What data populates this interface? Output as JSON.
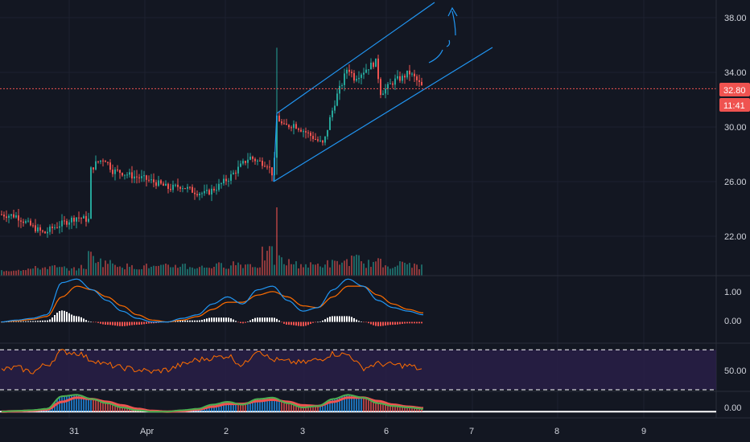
{
  "colors": {
    "background": "#131722",
    "grid": "#1e2230",
    "separator": "#2a2e39",
    "up": "#26a69a",
    "down": "#ef5350",
    "channel": "#2196f3",
    "price_line": "#ef5350",
    "macd_line": "#2196f3",
    "signal_line": "#ff6d00",
    "rsi_line": "#ff6d00",
    "rsi_band": "#2a1f4a",
    "hist_up": "#ffffff",
    "hist_down": "#ef5350",
    "zero_line": "#ffffff",
    "axis_text": "#d1d4dc"
  },
  "x_axis": {
    "labels": [
      "31",
      "Apr",
      "2",
      "3",
      "6",
      "7",
      "8",
      "9"
    ]
  },
  "price_axis": {
    "ticks": [
      "38.00",
      "34.00",
      "30.00",
      "26.00",
      "22.00"
    ]
  },
  "price_badge": {
    "price": "32.80",
    "countdown": "11:41",
    "value": 32.8
  },
  "indicator_axes": {
    "macd_ticks": [
      "1.00",
      "0.00"
    ],
    "rsi_ticks": [
      "50.00"
    ],
    "osc_ticks": [
      "0.00"
    ]
  },
  "chart_data": {
    "type": "candlestick",
    "x": [
      "31",
      "Apr",
      "2",
      "3",
      "6",
      "7",
      "8",
      "9"
    ],
    "ylim": [
      18.5,
      39.0
    ],
    "price_path": [
      [
        0,
        23.6
      ],
      [
        20,
        23.5
      ],
      [
        40,
        22.7
      ],
      [
        55,
        22.2
      ],
      [
        65,
        22.6
      ],
      [
        80,
        23.0
      ],
      [
        95,
        23.4
      ],
      [
        110,
        23.2
      ],
      [
        112,
        26.8
      ],
      [
        120,
        27.4
      ],
      [
        130,
        27.7
      ],
      [
        140,
        26.8
      ],
      [
        150,
        26.7
      ],
      [
        165,
        26.4
      ],
      [
        180,
        26.2
      ],
      [
        195,
        25.9
      ],
      [
        210,
        25.5
      ],
      [
        225,
        25.7
      ],
      [
        240,
        25.3
      ],
      [
        255,
        25.1
      ],
      [
        270,
        25.6
      ],
      [
        285,
        26.3
      ],
      [
        300,
        27.2
      ],
      [
        310,
        27.8
      ],
      [
        320,
        27.5
      ],
      [
        332,
        27.3
      ],
      [
        340,
        26.4
      ],
      [
        344,
        30.8
      ],
      [
        352,
        30.0
      ],
      [
        365,
        30.2
      ],
      [
        378,
        29.7
      ],
      [
        390,
        29.2
      ],
      [
        402,
        28.7
      ],
      [
        410,
        30.6
      ],
      [
        418,
        32.2
      ],
      [
        425,
        33.2
      ],
      [
        432,
        34.4
      ],
      [
        440,
        33.6
      ],
      [
        450,
        34.0
      ],
      [
        458,
        34.4
      ],
      [
        468,
        34.8
      ],
      [
        472,
        32.5
      ],
      [
        480,
        32.8
      ],
      [
        490,
        33.4
      ],
      [
        500,
        33.6
      ],
      [
        508,
        34.0
      ],
      [
        515,
        33.6
      ],
      [
        522,
        33.1
      ],
      [
        526,
        32.8
      ]
    ],
    "volume_heights": [
      0.1,
      0.15,
      0.2,
      0.25,
      0.3,
      0.25,
      0.2,
      0.3,
      0.9,
      0.6,
      0.5,
      0.35,
      0.3,
      0.35,
      0.3,
      0.35,
      0.4,
      0.3,
      0.3,
      0.35,
      0.4,
      0.5,
      0.45,
      0.4,
      1.0,
      0.7,
      0.55,
      0.45,
      0.4,
      0.45,
      0.5,
      0.6,
      0.7,
      0.5,
      0.55,
      0.4,
      0.45,
      0.5,
      0.35,
      0.3
    ],
    "channel": {
      "lower": [
        [
          26.0,
          340
        ],
        [
          36.0,
          612
        ]
      ],
      "upper": [
        [
          31.0,
          344
        ],
        [
          39.5,
          540
        ]
      ]
    },
    "macd": {
      "ylim": [
        -0.55,
        1.25
      ],
      "macd": [
        0.0,
        0.05,
        0.1,
        0.2,
        1.1,
        1.2,
        0.9,
        0.6,
        0.3,
        0.1,
        0.0,
        0.0,
        0.1,
        0.2,
        0.5,
        0.7,
        0.5,
        0.9,
        1.0,
        0.6,
        0.3,
        0.4,
        0.9,
        1.2,
        1.0,
        0.6,
        0.4,
        0.3,
        0.2
      ],
      "signal": [
        0.0,
        0.03,
        0.07,
        0.15,
        0.7,
        1.0,
        0.9,
        0.7,
        0.45,
        0.2,
        0.05,
        0.0,
        0.05,
        0.15,
        0.35,
        0.55,
        0.55,
        0.75,
        0.85,
        0.7,
        0.45,
        0.4,
        0.7,
        1.0,
        1.0,
        0.75,
        0.5,
        0.35,
        0.25
      ]
    },
    "rsi": {
      "ylim": [
        30,
        75
      ],
      "upper_band": 70,
      "lower_band": 30,
      "values": [
        50,
        52,
        48,
        55,
        68,
        67,
        60,
        55,
        52,
        50,
        48,
        50,
        55,
        60,
        62,
        64,
        55,
        70,
        60,
        58,
        57,
        60,
        66,
        65,
        52,
        56,
        55,
        54,
        50
      ]
    },
    "osc": {
      "ylim": [
        -0.3,
        1.2
      ],
      "zero": 0.0
    }
  }
}
